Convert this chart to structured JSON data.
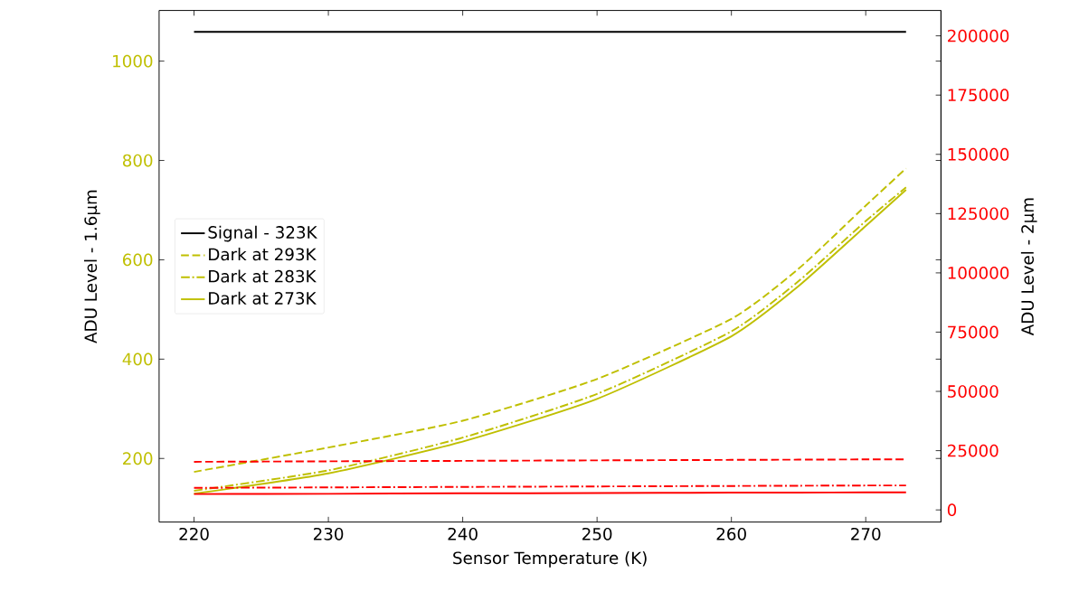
{
  "chart_data": {
    "type": "line",
    "xlabel": "Sensor Temperature (K)",
    "ylabel": "ADU Level - 1.6µm",
    "y2label": "ADU Level - 2µm",
    "x": [
      220,
      230,
      240,
      250,
      260,
      265,
      270,
      273
    ],
    "series": [
      {
        "name": "Signal - 323K",
        "color": "#000000",
        "line_style": "solid",
        "values": [
          1059,
          1059,
          1059,
          1059,
          1059,
          1059,
          1059,
          1059
        ]
      },
      {
        "name": "Dark at 293K",
        "color": "#bfbf00",
        "line_style": "dashed",
        "values": [
          173,
          222,
          276,
          360,
          481,
          582,
          709,
          784
        ]
      },
      {
        "name": "Dark at 283K",
        "color": "#bfbf00",
        "line_style": "dashdot",
        "values": [
          135,
          176,
          242,
          330,
          456,
          557,
          678,
          746
        ]
      },
      {
        "name": "Dark at 273K",
        "color": "#bfbf00",
        "line_style": "solid",
        "values": [
          129,
          170,
          234,
          320,
          446,
          547,
          668,
          741
        ]
      },
      {
        "color": "#ff0000",
        "line_style": "dashed",
        "axis": "y2",
        "values": [
          20300,
          20500,
          20700,
          20900,
          21100,
          21200,
          21300,
          21300
        ]
      },
      {
        "color": "#ff0000",
        "line_style": "dashdot",
        "axis": "y2",
        "values": [
          9300,
          9500,
          9700,
          9900,
          10100,
          10200,
          10300,
          10300
        ]
      },
      {
        "color": "#ff0000",
        "line_style": "solid",
        "axis": "y2",
        "values": [
          6700,
          6800,
          7000,
          7100,
          7300,
          7300,
          7400,
          7400
        ]
      }
    ],
    "xlim": [
      217.4,
      275.6
    ],
    "xticks": [
      220,
      230,
      240,
      250,
      260,
      270
    ],
    "ylim": [
      72,
      1102
    ],
    "yticks": [
      200,
      400,
      600,
      800,
      1000
    ],
    "y2lim": [
      -5120,
      210700
    ],
    "y2ticks": [
      0,
      25000,
      50000,
      75000,
      100000,
      125000,
      150000,
      175000,
      200000
    ],
    "legend": "left",
    "grid": false,
    "marker": "none"
  }
}
